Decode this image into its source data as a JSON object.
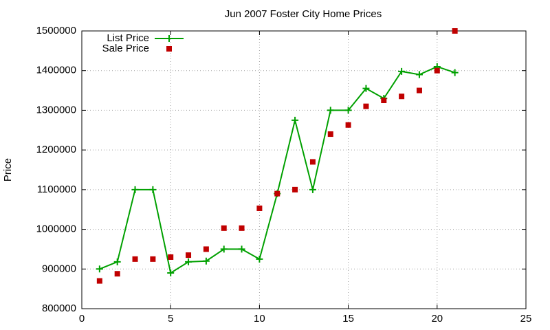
{
  "chart_data": {
    "type": "line",
    "title": "Jun 2007 Foster City Home Prices",
    "y_label": "Price",
    "xlim": [
      0,
      25
    ],
    "xticks": [
      0,
      5,
      10,
      15,
      20,
      25
    ],
    "ylim": [
      800000,
      1500000
    ],
    "yticks": [
      800000,
      900000,
      1000000,
      1100000,
      1200000,
      1300000,
      1400000,
      1500000
    ],
    "grid": true,
    "legend": "top-left",
    "x": [
      1,
      2,
      3,
      4,
      5,
      6,
      7,
      8,
      9,
      10,
      11,
      12,
      13,
      14,
      15,
      16,
      17,
      18,
      19,
      20,
      21
    ],
    "series": [
      {
        "name": "List Price",
        "color": "#00a000",
        "mode": "lines+markers",
        "values": [
          900000,
          918000,
          1100000,
          1100000,
          890000,
          918000,
          920000,
          950000,
          950000,
          925000,
          1090000,
          1275000,
          1100000,
          1300000,
          1300000,
          1355000,
          1330000,
          1398000,
          1390000,
          1410000,
          1395000
        ]
      },
      {
        "name": "Sale Price",
        "color": "#c00000",
        "mode": "markers",
        "values": [
          870000,
          888000,
          925000,
          925000,
          930000,
          935000,
          950000,
          1003000,
          1003000,
          1053000,
          1090000,
          1100000,
          1170000,
          1240000,
          1263000,
          1310000,
          1325000,
          1335000,
          1350000,
          1400000,
          1500000
        ]
      }
    ]
  }
}
